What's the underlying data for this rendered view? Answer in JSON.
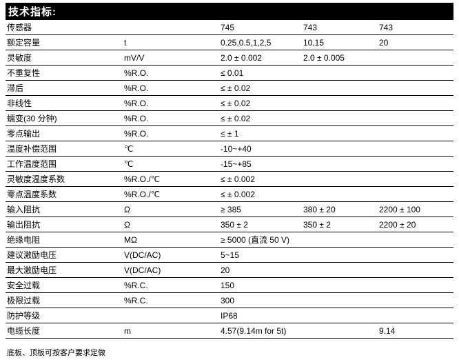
{
  "title": "技术指标:",
  "footnote": "底板、顶板可按客户要求定做",
  "colors": {
    "header_bg": "#000000",
    "header_fg": "#ffffff",
    "row_border": "#000000",
    "bg": "#ffffff"
  },
  "columns": [
    "param",
    "unit",
    "v1",
    "v2",
    "v3"
  ],
  "rows": [
    {
      "param": "传感器",
      "unit": "",
      "v1": "745",
      "v2": "743",
      "v3": "743"
    },
    {
      "param": "额定容量",
      "unit": "t",
      "v1": "0.25,0.5,1,2,5",
      "v2": "10,15",
      "v3": "20"
    },
    {
      "param": "灵敏度",
      "unit": "mV/V",
      "v1": "2.0 ± 0.002",
      "v2": "2.0 ± 0.005",
      "v3": ""
    },
    {
      "param": "不重复性",
      "unit": "%R.O.",
      "v1": "≤ 0.01",
      "v2": "",
      "v3": ""
    },
    {
      "param": "滞后",
      "unit": "%R.O.",
      "v1": "≤ ± 0.02",
      "v2": "",
      "v3": ""
    },
    {
      "param": "非线性",
      "unit": "%R.O.",
      "v1": "≤ ± 0.02",
      "v2": "",
      "v3": ""
    },
    {
      "param": "蠕变(30 分钟)",
      "unit": "%R.O.",
      "v1": "≤ ± 0.02",
      "v2": "",
      "v3": ""
    },
    {
      "param": "零点输出",
      "unit": "%R.O.",
      "v1": "≤ ± 1",
      "v2": "",
      "v3": ""
    },
    {
      "param": "温度补偿范围",
      "unit": "℃",
      "v1": "-10~+40",
      "v2": "",
      "v3": ""
    },
    {
      "param": "工作温度范围",
      "unit": "℃",
      "v1": "-15~+85",
      "v2": "",
      "v3": ""
    },
    {
      "param": "灵敏度温度系数",
      "unit": "%R.O./℃",
      "v1": "≤ ± 0.002",
      "v2": "",
      "v3": ""
    },
    {
      "param": "零点温度系数",
      "unit": "%R.O./℃",
      "v1": "≤ ± 0.002",
      "v2": "",
      "v3": ""
    },
    {
      "param": "输入阻抗",
      "unit": "Ω",
      "v1": "≥ 385",
      "v2": "380 ± 20",
      "v3": "2200 ± 100"
    },
    {
      "param": "输出阻抗",
      "unit": "Ω",
      "v1": "350 ± 2",
      "v2": "350 ± 2",
      "v3": "2200 ± 20"
    },
    {
      "param": "绝缘电阻",
      "unit": "MΩ",
      "v1": "≥ 5000 (直流 50 V)",
      "v2": "",
      "v3": ""
    },
    {
      "param": "建议激励电压",
      "unit": "V(DC/AC)",
      "v1": "5~15",
      "v2": "",
      "v3": ""
    },
    {
      "param": "最大激励电压",
      "unit": "V(DC/AC)",
      "v1": "20",
      "v2": "",
      "v3": ""
    },
    {
      "param": "安全过载",
      "unit": "%R.C.",
      "v1": "150",
      "v2": "",
      "v3": ""
    },
    {
      "param": "极限过载",
      "unit": "%R.C.",
      "v1": "300",
      "v2": "",
      "v3": ""
    },
    {
      "param": "防护等级",
      "unit": "",
      "v1": "IP68",
      "v2": "",
      "v3": ""
    },
    {
      "param": "电缆长度",
      "unit": "m",
      "v1": "4.57(9.14m for 5t)",
      "v2": "",
      "v3": "9.14"
    }
  ]
}
